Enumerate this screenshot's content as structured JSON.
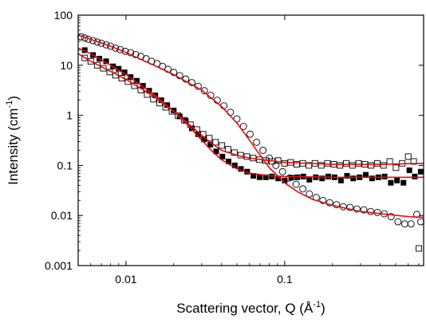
{
  "chart_data": {
    "type": "scatter",
    "title": "",
    "xlabel_main": "Scattering vector, Q (Å",
    "xlabel_sup": "-1",
    "xlabel_end": ")",
    "ylabel_main": "Intensity (cm",
    "ylabel_sup": "-1",
    "ylabel_end": ")",
    "xscale": "log",
    "yscale": "log",
    "xlim": [
      0.005,
      0.75
    ],
    "ylim": [
      0.001,
      100
    ],
    "x_ticks": [
      {
        "value": 0.01,
        "label": "0.01"
      },
      {
        "value": 0.1,
        "label": "0.1"
      }
    ],
    "y_ticks": [
      {
        "value": 0.001,
        "label": "0.001"
      },
      {
        "value": 0.01,
        "label": "0.01"
      },
      {
        "value": 0.1,
        "label": "0.1"
      },
      {
        "value": 1,
        "label": "1"
      },
      {
        "value": 10,
        "label": "10"
      },
      {
        "value": 100,
        "label": "100"
      }
    ],
    "grid": false,
    "legend": "none",
    "fit_color": "#e01010",
    "series": [
      {
        "marker": "open-circle",
        "fit_points": [
          [
            0.005,
            40
          ],
          [
            0.006,
            33
          ],
          [
            0.008,
            24
          ],
          [
            0.01,
            18
          ],
          [
            0.015,
            10
          ],
          [
            0.02,
            6.5
          ],
          [
            0.03,
            3.2
          ],
          [
            0.04,
            1.5
          ],
          [
            0.05,
            0.7
          ],
          [
            0.06,
            0.32
          ],
          [
            0.07,
            0.16
          ],
          [
            0.08,
            0.09
          ],
          [
            0.1,
            0.045
          ],
          [
            0.12,
            0.03
          ],
          [
            0.15,
            0.021
          ],
          [
            0.2,
            0.016
          ],
          [
            0.3,
            0.012
          ],
          [
            0.45,
            0.0105
          ],
          [
            0.6,
            0.0095
          ],
          [
            0.75,
            0.0092
          ]
        ],
        "points": [
          [
            0.0052,
            37
          ],
          [
            0.0055,
            35
          ],
          [
            0.0058,
            33
          ],
          [
            0.0062,
            31
          ],
          [
            0.0066,
            29
          ],
          [
            0.007,
            27.5
          ],
          [
            0.0075,
            25.5
          ],
          [
            0.008,
            24
          ],
          [
            0.0086,
            22
          ],
          [
            0.0092,
            20.5
          ],
          [
            0.0099,
            19
          ],
          [
            0.0107,
            17.8
          ],
          [
            0.0115,
            16.3
          ],
          [
            0.0124,
            15
          ],
          [
            0.0134,
            13.5
          ],
          [
            0.0145,
            12
          ],
          [
            0.0157,
            10.8
          ],
          [
            0.017,
            9.5
          ],
          [
            0.0184,
            8.3
          ],
          [
            0.02,
            7.2
          ],
          [
            0.0218,
            6.2
          ],
          [
            0.0238,
            5.3
          ],
          [
            0.026,
            4.5
          ],
          [
            0.0285,
            3.8
          ],
          [
            0.0312,
            3.1
          ],
          [
            0.0342,
            2.5
          ],
          [
            0.0376,
            2.0
          ],
          [
            0.0414,
            1.55
          ],
          [
            0.0455,
            1.15
          ],
          [
            0.05,
            0.85
          ],
          [
            0.055,
            0.6
          ],
          [
            0.0605,
            0.42
          ],
          [
            0.0665,
            0.29
          ],
          [
            0.073,
            0.2
          ],
          [
            0.08,
            0.14
          ],
          [
            0.088,
            0.1
          ],
          [
            0.097,
            0.075
          ],
          [
            0.107,
            0.056
          ],
          [
            0.118,
            0.042
          ],
          [
            0.13,
            0.034
          ],
          [
            0.143,
            0.027
          ],
          [
            0.158,
            0.023
          ],
          [
            0.174,
            0.02
          ],
          [
            0.192,
            0.018
          ],
          [
            0.212,
            0.0165
          ],
          [
            0.234,
            0.015
          ],
          [
            0.258,
            0.0145
          ],
          [
            0.285,
            0.0135
          ],
          [
            0.315,
            0.013
          ],
          [
            0.348,
            0.012
          ],
          [
            0.384,
            0.0115
          ],
          [
            0.424,
            0.0108
          ],
          [
            0.468,
            0.0095
          ],
          [
            0.517,
            0.0075
          ],
          [
            0.57,
            0.0068
          ],
          [
            0.625,
            0.0068
          ],
          [
            0.68,
            0.0105
          ],
          [
            0.72,
            0.0075
          ]
        ]
      },
      {
        "marker": "filled-square",
        "fit_points": [
          [
            0.005,
            22
          ],
          [
            0.006,
            17
          ],
          [
            0.008,
            10
          ],
          [
            0.01,
            6.5
          ],
          [
            0.015,
            2.6
          ],
          [
            0.02,
            1.2
          ],
          [
            0.025,
            0.6
          ],
          [
            0.03,
            0.32
          ],
          [
            0.035,
            0.19
          ],
          [
            0.04,
            0.13
          ],
          [
            0.05,
            0.085
          ],
          [
            0.06,
            0.07
          ],
          [
            0.08,
            0.062
          ],
          [
            0.1,
            0.06
          ],
          [
            0.2,
            0.058
          ],
          [
            0.4,
            0.058
          ],
          [
            0.75,
            0.058
          ]
        ],
        "points": [
          [
            0.0055,
            20
          ],
          [
            0.0062,
            16
          ],
          [
            0.0068,
            13.5
          ],
          [
            0.0075,
            12
          ],
          [
            0.0083,
            9.5
          ],
          [
            0.009,
            8.5
          ],
          [
            0.0098,
            7.2
          ],
          [
            0.0107,
            5.8
          ],
          [
            0.0117,
            4.9
          ],
          [
            0.0128,
            3.9
          ],
          [
            0.014,
            3.1
          ],
          [
            0.0153,
            2.5
          ],
          [
            0.0167,
            2.0
          ],
          [
            0.0182,
            1.6
          ],
          [
            0.02,
            1.25
          ],
          [
            0.0218,
            0.95
          ],
          [
            0.0238,
            0.78
          ],
          [
            0.026,
            0.55
          ],
          [
            0.0285,
            0.42
          ],
          [
            0.031,
            0.33
          ],
          [
            0.034,
            0.26
          ],
          [
            0.037,
            0.19
          ],
          [
            0.0405,
            0.15
          ],
          [
            0.0443,
            0.12
          ],
          [
            0.0485,
            0.1
          ],
          [
            0.053,
            0.085
          ],
          [
            0.058,
            0.075
          ],
          [
            0.0635,
            0.062
          ],
          [
            0.0695,
            0.058
          ],
          [
            0.076,
            0.058
          ],
          [
            0.083,
            0.06
          ],
          [
            0.091,
            0.055
          ],
          [
            0.1,
            0.05
          ],
          [
            0.11,
            0.057
          ],
          [
            0.12,
            0.058
          ],
          [
            0.131,
            0.06
          ],
          [
            0.143,
            0.052
          ],
          [
            0.157,
            0.058
          ],
          [
            0.172,
            0.055
          ],
          [
            0.188,
            0.06
          ],
          [
            0.206,
            0.058
          ],
          [
            0.226,
            0.05
          ],
          [
            0.247,
            0.062
          ],
          [
            0.27,
            0.055
          ],
          [
            0.296,
            0.058
          ],
          [
            0.324,
            0.065
          ],
          [
            0.355,
            0.055
          ],
          [
            0.389,
            0.058
          ],
          [
            0.426,
            0.06
          ],
          [
            0.466,
            0.045
          ],
          [
            0.51,
            0.05
          ],
          [
            0.56,
            0.045
          ],
          [
            0.61,
            0.08
          ],
          [
            0.66,
            0.06
          ],
          [
            0.72,
            0.075
          ]
        ]
      },
      {
        "marker": "open-square",
        "fit_points": [
          [
            0.005,
            17
          ],
          [
            0.006,
            12
          ],
          [
            0.008,
            7.5
          ],
          [
            0.01,
            5.2
          ],
          [
            0.015,
            2.4
          ],
          [
            0.02,
            1.2
          ],
          [
            0.025,
            0.66
          ],
          [
            0.03,
            0.4
          ],
          [
            0.035,
            0.27
          ],
          [
            0.04,
            0.2
          ],
          [
            0.05,
            0.16
          ],
          [
            0.06,
            0.14
          ],
          [
            0.08,
            0.125
          ],
          [
            0.1,
            0.115
          ],
          [
            0.2,
            0.105
          ],
          [
            0.4,
            0.105
          ],
          [
            0.75,
            0.11
          ]
        ],
        "points": [
          [
            0.0055,
            14
          ],
          [
            0.006,
            12
          ],
          [
            0.0066,
            10
          ],
          [
            0.0072,
            8.7
          ],
          [
            0.0079,
            7.3
          ],
          [
            0.0086,
            6.3
          ],
          [
            0.0094,
            5.5
          ],
          [
            0.0103,
            4.7
          ],
          [
            0.0113,
            3.9
          ],
          [
            0.0124,
            3.2
          ],
          [
            0.0136,
            2.6
          ],
          [
            0.0149,
            2.1
          ],
          [
            0.0163,
            1.75
          ],
          [
            0.0178,
            1.45
          ],
          [
            0.0195,
            1.2
          ],
          [
            0.0213,
            0.98
          ],
          [
            0.0233,
            0.8
          ],
          [
            0.0255,
            0.65
          ],
          [
            0.028,
            0.52
          ],
          [
            0.0306,
            0.42
          ],
          [
            0.0335,
            0.35
          ],
          [
            0.0367,
            0.29
          ],
          [
            0.0402,
            0.25
          ],
          [
            0.044,
            0.21
          ],
          [
            0.0482,
            0.18
          ],
          [
            0.0528,
            0.16
          ],
          [
            0.0578,
            0.15
          ],
          [
            0.0633,
            0.14
          ],
          [
            0.0693,
            0.13
          ],
          [
            0.0759,
            0.125
          ],
          [
            0.0831,
            0.12
          ],
          [
            0.091,
            0.125
          ],
          [
            0.0997,
            0.11
          ],
          [
            0.109,
            0.115
          ],
          [
            0.119,
            0.105
          ],
          [
            0.13,
            0.11
          ],
          [
            0.142,
            0.1
          ],
          [
            0.155,
            0.11
          ],
          [
            0.17,
            0.1
          ],
          [
            0.186,
            0.11
          ],
          [
            0.204,
            0.105
          ],
          [
            0.223,
            0.1
          ],
          [
            0.244,
            0.11
          ],
          [
            0.267,
            0.1
          ],
          [
            0.292,
            0.11
          ],
          [
            0.32,
            0.105
          ],
          [
            0.35,
            0.1
          ],
          [
            0.383,
            0.11
          ],
          [
            0.419,
            0.1
          ],
          [
            0.459,
            0.12
          ],
          [
            0.502,
            0.09
          ],
          [
            0.55,
            0.11
          ],
          [
            0.6,
            0.15
          ],
          [
            0.65,
            0.12
          ],
          [
            0.7,
            0.0022
          ]
        ]
      }
    ]
  }
}
